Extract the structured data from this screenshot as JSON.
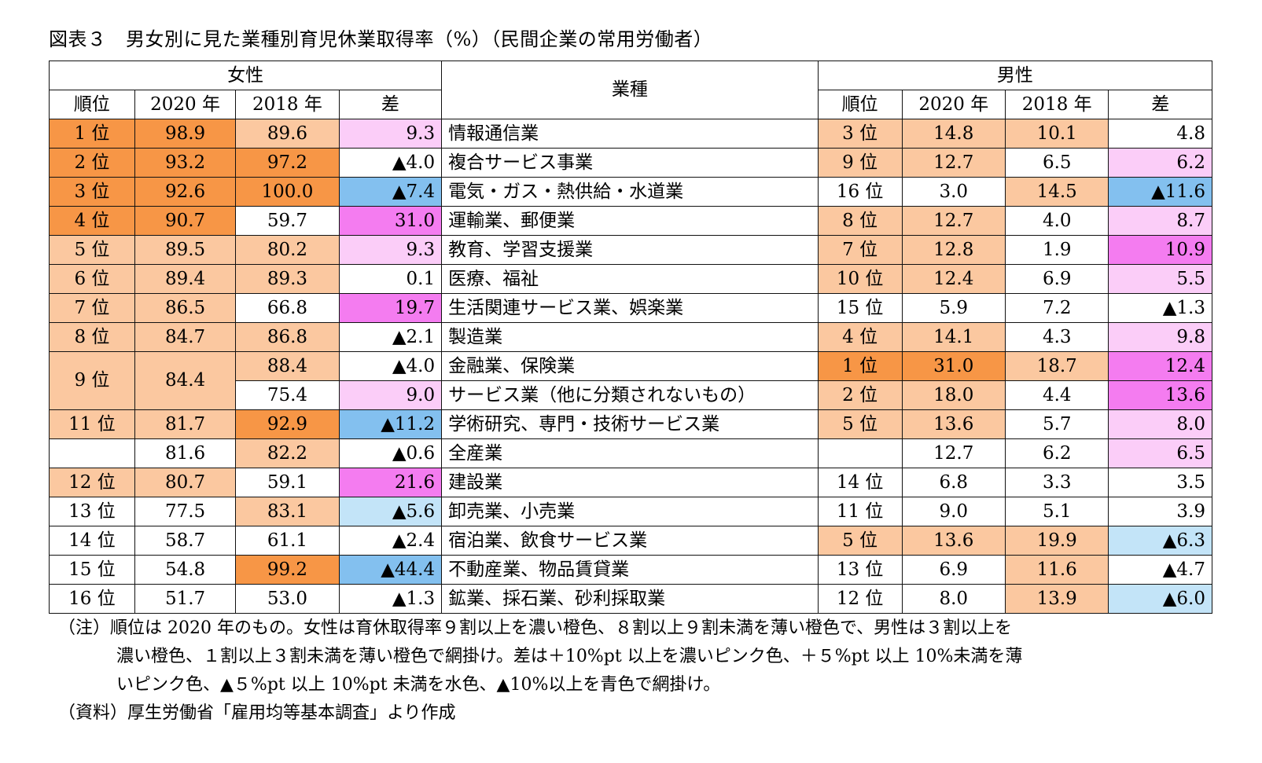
{
  "title": "図表３　男女別に見た業種別育児休業取得率（%）（民間企業の常用労働者）",
  "headers": {
    "female": "女性",
    "male": "男性",
    "industry": "業種",
    "rank": "順位",
    "y2020": "2020 年",
    "y2018": "2018 年",
    "diff": "差"
  },
  "colors": {
    "dark_orange": "#f79646",
    "light_orange": "#fbc8a0",
    "dark_pink": "#f47cf0",
    "light_pink": "#fbcdf8",
    "light_blue": "#c3e4f8",
    "blue": "#83c0ef"
  },
  "rows": [
    {
      "f_rank": "1 位",
      "f2020": "98.9",
      "f2018": "89.6",
      "fdiff": "9.3",
      "industry": "情報通信業",
      "m_rank": "3 位",
      "m2020": "14.8",
      "m2018": "10.1",
      "mdiff": "4.8"
    },
    {
      "f_rank": "2 位",
      "f2020": "93.2",
      "f2018": "97.2",
      "fdiff": "▲4.0",
      "industry": "複合サービス事業",
      "m_rank": "9 位",
      "m2020": "12.7",
      "m2018": "6.5",
      "mdiff": "6.2"
    },
    {
      "f_rank": "3 位",
      "f2020": "92.6",
      "f2018": "100.0",
      "fdiff": "▲7.4",
      "industry": "電気・ガス・熱供給・水道業",
      "m_rank": "16 位",
      "m2020": "3.0",
      "m2018": "14.5",
      "mdiff": "▲11.6"
    },
    {
      "f_rank": "4 位",
      "f2020": "90.7",
      "f2018": "59.7",
      "fdiff": "31.0",
      "industry": "運輸業、郵便業",
      "m_rank": "8 位",
      "m2020": "12.7",
      "m2018": "4.0",
      "mdiff": "8.7"
    },
    {
      "f_rank": "5 位",
      "f2020": "89.5",
      "f2018": "80.2",
      "fdiff": "9.3",
      "industry": "教育、学習支援業",
      "m_rank": "7 位",
      "m2020": "12.8",
      "m2018": "1.9",
      "mdiff": "10.9"
    },
    {
      "f_rank": "6 位",
      "f2020": "89.4",
      "f2018": "89.3",
      "fdiff": "0.1",
      "industry": "医療、福祉",
      "m_rank": "10 位",
      "m2020": "12.4",
      "m2018": "6.9",
      "mdiff": "5.5"
    },
    {
      "f_rank": "7 位",
      "f2020": "86.5",
      "f2018": "66.8",
      "fdiff": "19.7",
      "industry": "生活関連サービス業、娯楽業",
      "m_rank": "15 位",
      "m2020": "5.9",
      "m2018": "7.2",
      "mdiff": "▲1.3"
    },
    {
      "f_rank": "8 位",
      "f2020": "84.7",
      "f2018": "86.8",
      "fdiff": "▲2.1",
      "industry": "製造業",
      "m_rank": "4 位",
      "m2020": "14.1",
      "m2018": "4.3",
      "mdiff": "9.8"
    },
    {
      "f_rank": "9 位",
      "f2020": "84.4",
      "f2018": "88.4",
      "fdiff": "▲4.0",
      "industry": "金融業、保険業",
      "m_rank": "1 位",
      "m2020": "31.0",
      "m2018": "18.7",
      "mdiff": "12.4"
    },
    {
      "f_rank": "",
      "f2020": "",
      "f2018": "75.4",
      "fdiff": "9.0",
      "industry": "サービス業（他に分類されないもの）",
      "m_rank": "2 位",
      "m2020": "18.0",
      "m2018": "4.4",
      "mdiff": "13.6"
    },
    {
      "f_rank": "11 位",
      "f2020": "81.7",
      "f2018": "92.9",
      "fdiff": "▲11.2",
      "industry": "学術研究、専門・技術サービス業",
      "m_rank": "5 位",
      "m2020": "13.6",
      "m2018": "5.7",
      "mdiff": "8.0"
    },
    {
      "f_rank": "",
      "f2020": "81.6",
      "f2018": "82.2",
      "fdiff": "▲0.6",
      "industry": "全産業",
      "m_rank": "",
      "m2020": "12.7",
      "m2018": "6.2",
      "mdiff": "6.5"
    },
    {
      "f_rank": "12 位",
      "f2020": "80.7",
      "f2018": "59.1",
      "fdiff": "21.6",
      "industry": "建設業",
      "m_rank": "14 位",
      "m2020": "6.8",
      "m2018": "3.3",
      "mdiff": "3.5"
    },
    {
      "f_rank": "13 位",
      "f2020": "77.5",
      "f2018": "83.1",
      "fdiff": "▲5.6",
      "industry": "卸売業、小売業",
      "m_rank": "11 位",
      "m2020": "9.0",
      "m2018": "5.1",
      "mdiff": "3.9"
    },
    {
      "f_rank": "14 位",
      "f2020": "58.7",
      "f2018": "61.1",
      "fdiff": "▲2.4",
      "industry": "宿泊業、飲食サービス業",
      "m_rank": "5 位",
      "m2020": "13.6",
      "m2018": "19.9",
      "mdiff": "▲6.3"
    },
    {
      "f_rank": "15 位",
      "f2020": "54.8",
      "f2018": "99.2",
      "fdiff": "▲44.4",
      "industry": "不動産業、物品賃貸業",
      "m_rank": "13 位",
      "m2020": "6.9",
      "m2018": "11.6",
      "mdiff": "▲4.7"
    },
    {
      "f_rank": "16 位",
      "f2020": "51.7",
      "f2018": "53.0",
      "fdiff": "▲1.3",
      "industry": "鉱業、採石業、砂利採取業",
      "m_rank": "12 位",
      "m2020": "8.0",
      "m2018": "13.9",
      "mdiff": "▲6.0"
    }
  ],
  "notes": {
    "line1": "（注）順位は 2020 年のもの。女性は育休取得率９割以上を濃い橙色、８割以上９割未満を薄い橙色で、男性は３割以上を",
    "line2": "濃い橙色、１割以上３割未満を薄い橙色で網掛け。差は＋10%pt 以上を濃いピンク色、＋５%pt 以上 10%未満を薄",
    "line3": "いピンク色、▲５%pt 以上 10%pt 未満を水色、▲10%以上を青色で網掛け。",
    "source": "（資料）厚生労働省「雇用均等基本調査」より作成"
  }
}
